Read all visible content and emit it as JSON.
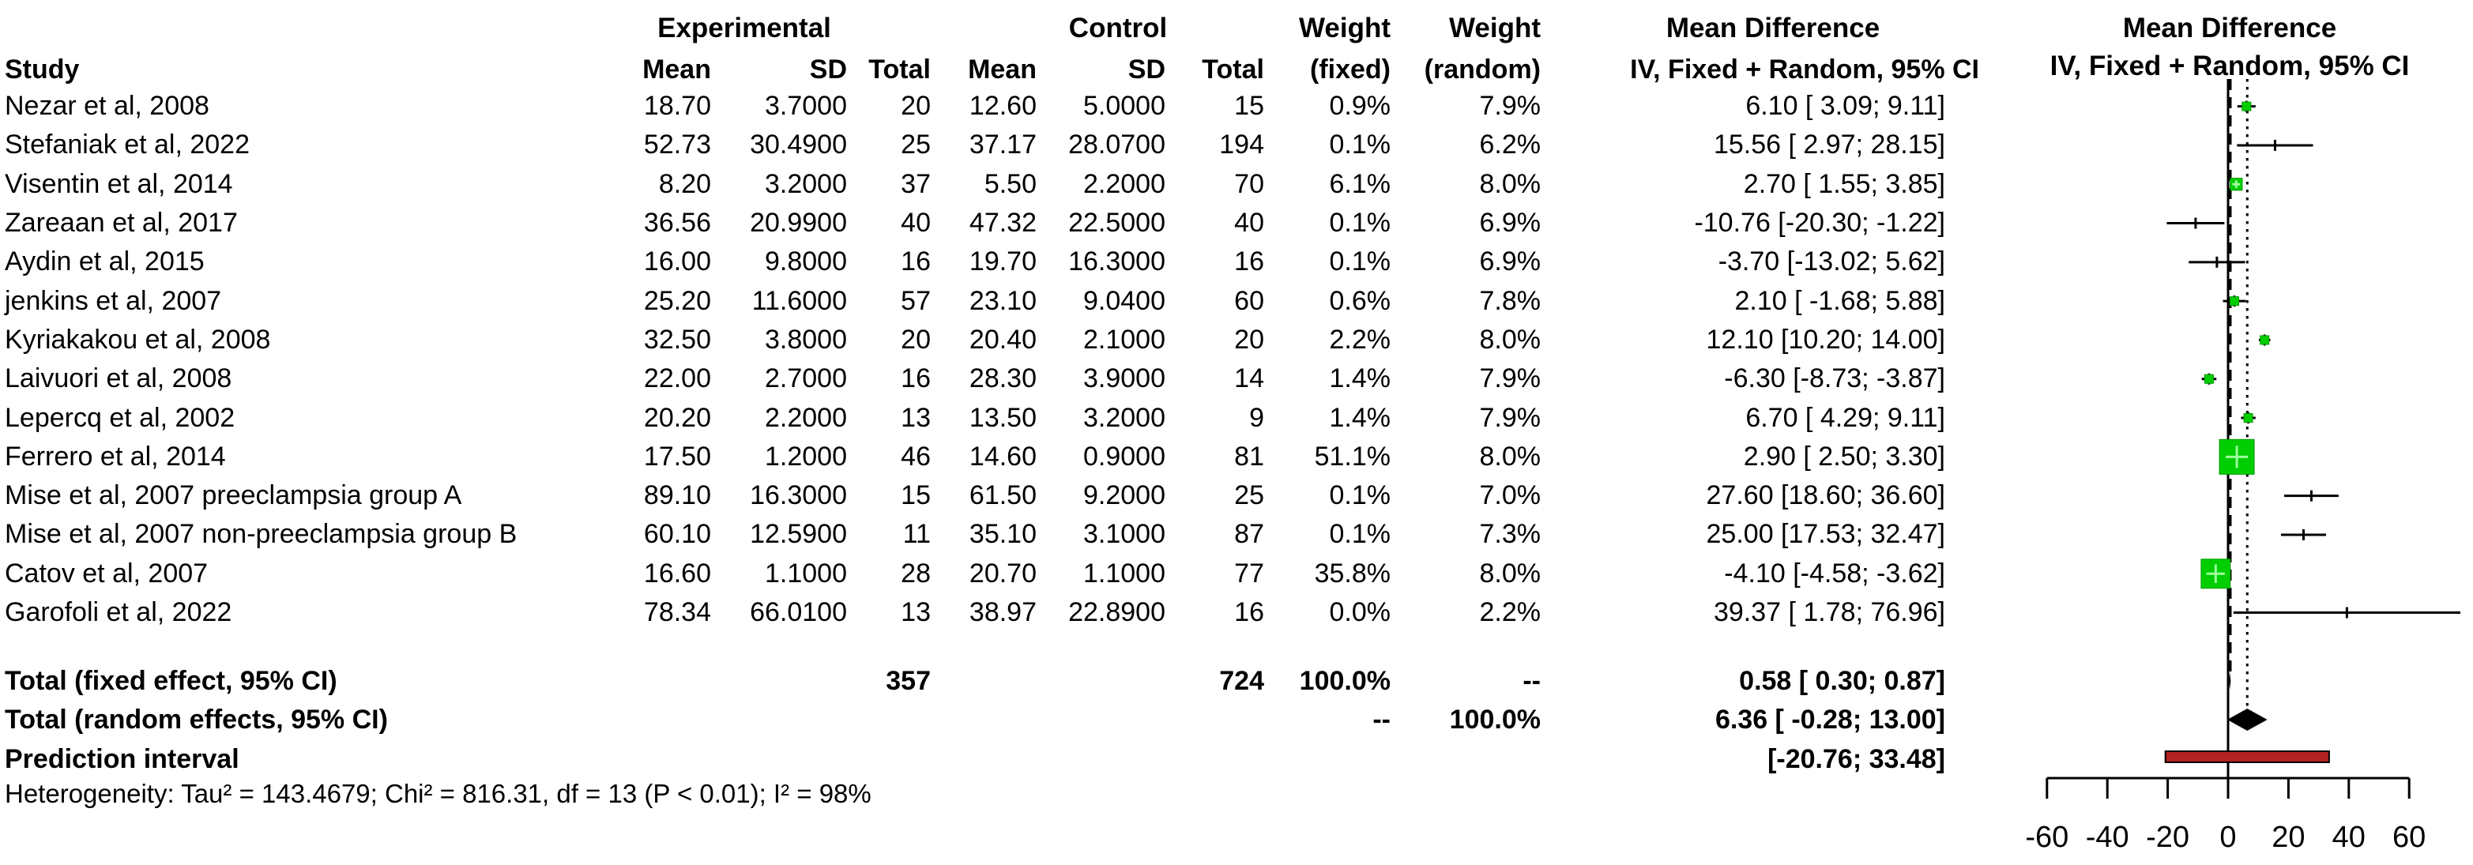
{
  "header": {
    "experimental": "Experimental",
    "control": "Control",
    "weight_fixed": "Weight",
    "weight_random": "Weight",
    "weight_fixed_sub": "(fixed)",
    "weight_random_sub": "(random)",
    "mean_difference": "Mean Difference",
    "iv_ci": "IV, Fixed + Random, 95% CI",
    "study": "Study",
    "e_mean": "Mean",
    "e_sd": "SD",
    "e_total": "Total",
    "c_mean": "Mean",
    "c_sd": "SD",
    "c_total": "Total"
  },
  "chart_data": {
    "type": "scatter",
    "subtype": "forest-plot",
    "title": "Mean Difference",
    "effect_label": "IV, Fixed + Random, 95% CI",
    "axis": {
      "ticks": [
        -60,
        -40,
        -20,
        0,
        20,
        40,
        60
      ],
      "xlim": [
        -60,
        77
      ],
      "zero_line": 0
    },
    "colors": {
      "square": "#00CE00",
      "square_cross": "#9CFF9C",
      "diamond": "#000000",
      "prediction_bar": "#B22222",
      "line": "#000000"
    },
    "studies": [
      {
        "name": "Nezar et al, 2008",
        "e_mean": "18.70",
        "e_sd": "3.7000",
        "e_total": "20",
        "c_mean": "12.60",
        "c_sd": "5.0000",
        "c_total": "15",
        "w_fixed": "0.9%",
        "w_random": "7.9%",
        "md_ci": "6.10 [ 3.09; 9.11]",
        "md": 6.1,
        "lo": 3.09,
        "hi": 9.11,
        "wf": 0.9
      },
      {
        "name": "Stefaniak et al, 2022",
        "e_mean": "52.73",
        "e_sd": "30.4900",
        "e_total": "25",
        "c_mean": "37.17",
        "c_sd": "28.0700",
        "c_total": "194",
        "w_fixed": "0.1%",
        "w_random": "6.2%",
        "md_ci": "15.56 [ 2.97; 28.15]",
        "md": 15.56,
        "lo": 2.97,
        "hi": 28.15,
        "wf": 0.1
      },
      {
        "name": "Visentin et al, 2014",
        "e_mean": "8.20",
        "e_sd": "3.2000",
        "e_total": "37",
        "c_mean": "5.50",
        "c_sd": "2.2000",
        "c_total": "70",
        "w_fixed": "6.1%",
        "w_random": "8.0%",
        "md_ci": "2.70 [ 1.55; 3.85]",
        "md": 2.7,
        "lo": 1.55,
        "hi": 3.85,
        "wf": 6.1
      },
      {
        "name": "Zareaan et al, 2017",
        "e_mean": "36.56",
        "e_sd": "20.9900",
        "e_total": "40",
        "c_mean": "47.32",
        "c_sd": "22.5000",
        "c_total": "40",
        "w_fixed": "0.1%",
        "w_random": "6.9%",
        "md_ci": "-10.76 [-20.30; -1.22]",
        "md": -10.76,
        "lo": -20.3,
        "hi": -1.22,
        "wf": 0.1
      },
      {
        "name": "Aydin et al, 2015",
        "e_mean": "16.00",
        "e_sd": "9.8000",
        "e_total": "16",
        "c_mean": "19.70",
        "c_sd": "16.3000",
        "c_total": "16",
        "w_fixed": "0.1%",
        "w_random": "6.9%",
        "md_ci": "-3.70 [-13.02; 5.62]",
        "md": -3.7,
        "lo": -13.02,
        "hi": 5.62,
        "wf": 0.1
      },
      {
        "name": "jenkins et al, 2007",
        "e_mean": "25.20",
        "e_sd": "11.6000",
        "e_total": "57",
        "c_mean": "23.10",
        "c_sd": "9.0400",
        "c_total": "60",
        "w_fixed": "0.6%",
        "w_random": "7.8%",
        "md_ci": "2.10 [ -1.68; 5.88]",
        "md": 2.1,
        "lo": -1.68,
        "hi": 5.88,
        "wf": 0.6
      },
      {
        "name": "Kyriakakou et al, 2008",
        "e_mean": "32.50",
        "e_sd": "3.8000",
        "e_total": "20",
        "c_mean": "20.40",
        "c_sd": "2.1000",
        "c_total": "20",
        "w_fixed": "2.2%",
        "w_random": "8.0%",
        "md_ci": "12.10 [10.20; 14.00]",
        "md": 12.1,
        "lo": 10.2,
        "hi": 14.0,
        "wf": 2.2
      },
      {
        "name": "Laivuori et al, 2008",
        "e_mean": "22.00",
        "e_sd": "2.7000",
        "e_total": "16",
        "c_mean": "28.30",
        "c_sd": "3.9000",
        "c_total": "14",
        "w_fixed": "1.4%",
        "w_random": "7.9%",
        "md_ci": "-6.30 [-8.73; -3.87]",
        "md": -6.3,
        "lo": -8.73,
        "hi": -3.87,
        "wf": 1.4
      },
      {
        "name": "Lepercq et al, 2002",
        "e_mean": "20.20",
        "e_sd": "2.2000",
        "e_total": "13",
        "c_mean": "13.50",
        "c_sd": "3.2000",
        "c_total": "9",
        "w_fixed": "1.4%",
        "w_random": "7.9%",
        "md_ci": "6.70 [ 4.29; 9.11]",
        "md": 6.7,
        "lo": 4.29,
        "hi": 9.11,
        "wf": 1.4
      },
      {
        "name": "Ferrero et al, 2014",
        "e_mean": "17.50",
        "e_sd": "1.2000",
        "e_total": "46",
        "c_mean": "14.60",
        "c_sd": "0.9000",
        "c_total": "81",
        "w_fixed": "51.1%",
        "w_random": "8.0%",
        "md_ci": "2.90 [ 2.50; 3.30]",
        "md": 2.9,
        "lo": 2.5,
        "hi": 3.3,
        "wf": 51.1
      },
      {
        "name": "Mise et al, 2007 preeclampsia group A",
        "e_mean": "89.10",
        "e_sd": "16.3000",
        "e_total": "15",
        "c_mean": "61.50",
        "c_sd": "9.2000",
        "c_total": "25",
        "w_fixed": "0.1%",
        "w_random": "7.0%",
        "md_ci": "27.60 [18.60; 36.60]",
        "md": 27.6,
        "lo": 18.6,
        "hi": 36.6,
        "wf": 0.1
      },
      {
        "name": "Mise et al, 2007 non-preeclampsia group B",
        "e_mean": "60.10",
        "e_sd": "12.5900",
        "e_total": "11",
        "c_mean": "35.10",
        "c_sd": "3.1000",
        "c_total": "87",
        "w_fixed": "0.1%",
        "w_random": "7.3%",
        "md_ci": "25.00 [17.53; 32.47]",
        "md": 25.0,
        "lo": 17.53,
        "hi": 32.47,
        "wf": 0.1
      },
      {
        "name": "Catov et al, 2007",
        "e_mean": "16.60",
        "e_sd": "1.1000",
        "e_total": "28",
        "c_mean": "20.70",
        "c_sd": "1.1000",
        "c_total": "77",
        "w_fixed": "35.8%",
        "w_random": "8.0%",
        "md_ci": "-4.10 [-4.58; -3.62]",
        "md": -4.1,
        "lo": -4.58,
        "hi": -3.62,
        "wf": 35.8
      },
      {
        "name": "Garofoli et al, 2022",
        "e_mean": "78.34",
        "e_sd": "66.0100",
        "e_total": "13",
        "c_mean": "38.97",
        "c_sd": "22.8900",
        "c_total": "16",
        "w_fixed": "0.0%",
        "w_random": "2.2%",
        "md_ci": "39.37 [ 1.78; 76.96]",
        "md": 39.37,
        "lo": 1.78,
        "hi": 76.96,
        "wf": 0.0
      }
    ],
    "totals": {
      "fixed": {
        "label": "Total (fixed effect, 95% CI)",
        "e_total": "357",
        "c_total": "724",
        "w_fixed": "100.0%",
        "w_random": "--",
        "md_ci": "0.58 [ 0.30; 0.87]",
        "md": 0.58,
        "lo": 0.3,
        "hi": 0.87
      },
      "random": {
        "label": "Total (random effects, 95% CI)",
        "w_fixed": "--",
        "w_random": "100.0%",
        "md_ci": "6.36 [ -0.28; 13.00]",
        "md": 6.36,
        "lo": -0.28,
        "hi": 13.0
      },
      "prediction": {
        "label": "Prediction interval",
        "md_ci": "[-20.76; 33.48]",
        "lo": -20.76,
        "hi": 33.48
      }
    },
    "heterogeneity": "Heterogeneity: Tau² = 143.4679; Chi² = 816.31, df = 13 (P < 0.01); I² = 98%"
  }
}
